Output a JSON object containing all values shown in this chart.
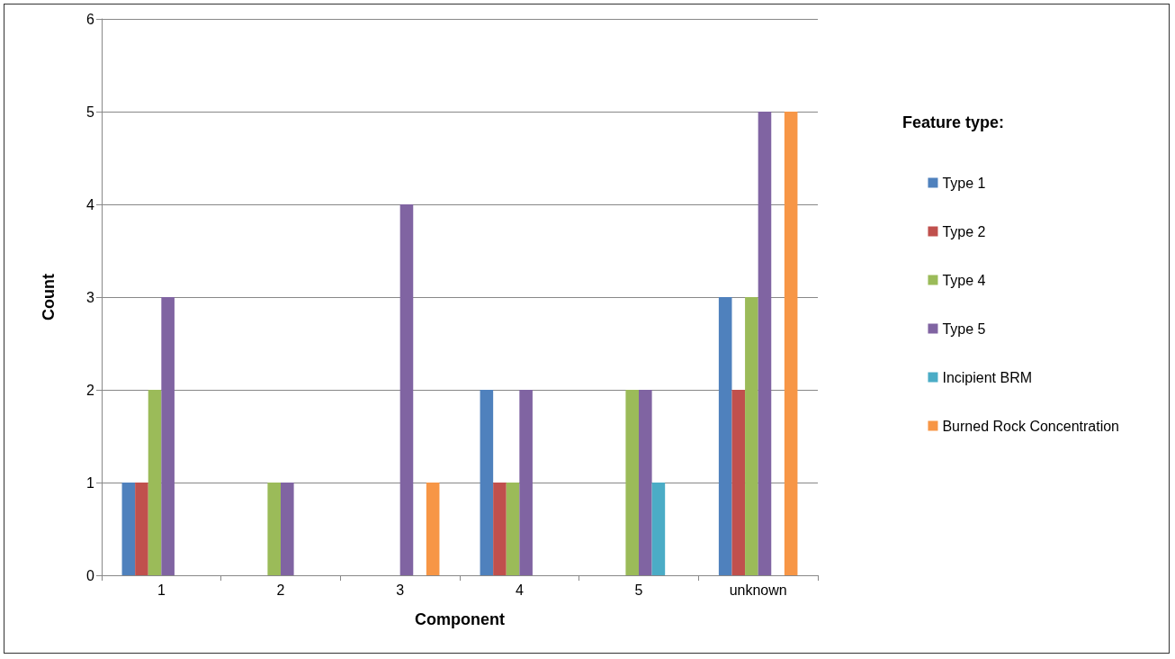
{
  "chart_data": {
    "type": "bar",
    "xlabel": "Component",
    "ylabel": "Count",
    "legend_title": "Feature type:",
    "categories": [
      "1",
      "2",
      "3",
      "4",
      "5",
      "unknown"
    ],
    "series": [
      {
        "name": "Type 1",
        "color": "#4f81bd",
        "values": [
          1,
          0,
          0,
          2,
          0,
          3
        ]
      },
      {
        "name": "Type 2",
        "color": "#c0504d",
        "values": [
          1,
          0,
          0,
          1,
          0,
          2
        ]
      },
      {
        "name": "Type 4",
        "color": "#9bbb59",
        "values": [
          2,
          1,
          0,
          1,
          2,
          3
        ]
      },
      {
        "name": "Type 5",
        "color": "#8064a2",
        "values": [
          3,
          1,
          4,
          2,
          2,
          5
        ]
      },
      {
        "name": "Incipient BRM",
        "color": "#4bacc6",
        "values": [
          0,
          0,
          0,
          0,
          1,
          0
        ]
      },
      {
        "name": "Burned Rock Concentration",
        "color": "#f79646",
        "values": [
          0,
          0,
          1,
          0,
          0,
          5
        ]
      }
    ],
    "ylim": [
      0,
      6
    ],
    "yticks": [
      0,
      1,
      2,
      3,
      4,
      5,
      6
    ],
    "grid": "y",
    "legend": "right"
  }
}
